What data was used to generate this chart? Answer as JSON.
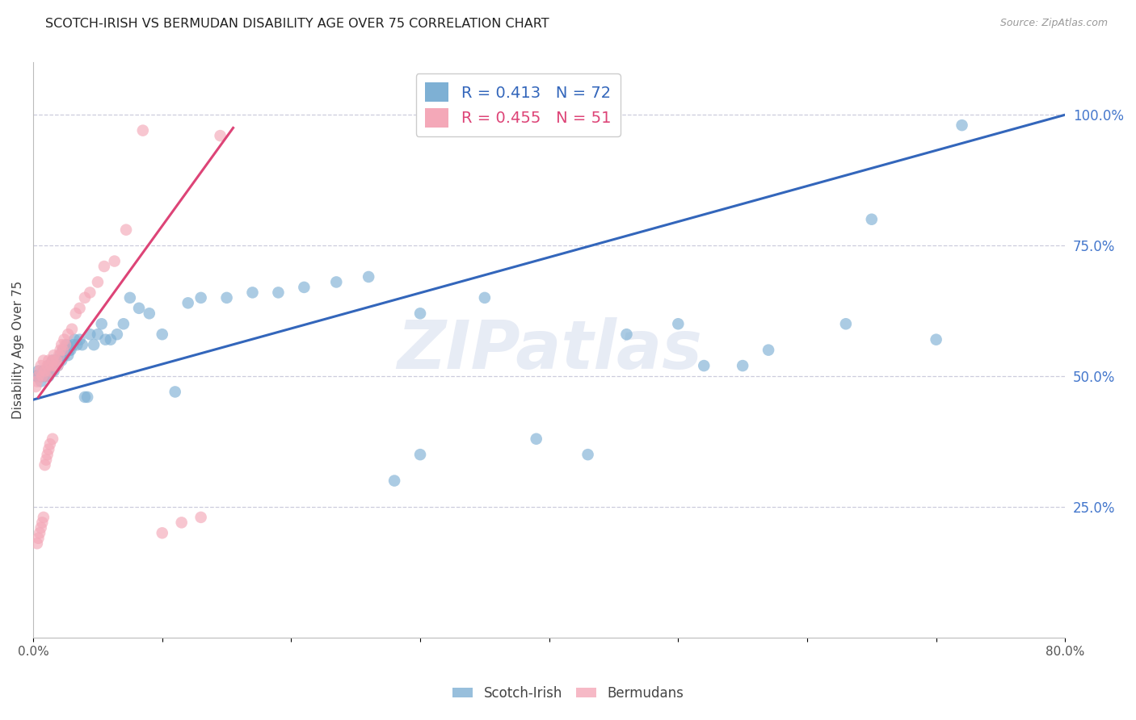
{
  "title": "SCOTCH-IRISH VS BERMUDAN DISABILITY AGE OVER 75 CORRELATION CHART",
  "source": "Source: ZipAtlas.com",
  "ylabel": "Disability Age Over 75",
  "watermark": "ZIPatlas",
  "blue_R": 0.413,
  "blue_N": 72,
  "pink_R": 0.455,
  "pink_N": 51,
  "blue_color": "#7EB0D4",
  "pink_color": "#F4A8B8",
  "blue_line_color": "#3366BB",
  "pink_line_color": "#DD4477",
  "right_tick_color": "#4477CC",
  "grid_color": "#CCCCDD",
  "background_color": "#FFFFFF",
  "x_min": 0.0,
  "x_max": 0.8,
  "y_min": 0.0,
  "y_max": 1.1,
  "blue_trend_x0": 0.0,
  "blue_trend_y0": 0.455,
  "blue_trend_x1": 0.8,
  "blue_trend_y1": 1.0,
  "pink_trend_x0": 0.004,
  "pink_trend_y0": 0.46,
  "pink_trend_x1": 0.155,
  "pink_trend_y1": 0.975,
  "scotch_irish_x": [
    0.002,
    0.003,
    0.004,
    0.005,
    0.006,
    0.007,
    0.008,
    0.009,
    0.01,
    0.011,
    0.012,
    0.012,
    0.013,
    0.014,
    0.015,
    0.016,
    0.017,
    0.018,
    0.019,
    0.02,
    0.021,
    0.022,
    0.023,
    0.024,
    0.025,
    0.026,
    0.027,
    0.028,
    0.029,
    0.031,
    0.032,
    0.034,
    0.036,
    0.038,
    0.04,
    0.042,
    0.044,
    0.047,
    0.05,
    0.053,
    0.056,
    0.06,
    0.065,
    0.07,
    0.075,
    0.082,
    0.09,
    0.1,
    0.11,
    0.12,
    0.13,
    0.15,
    0.17,
    0.19,
    0.21,
    0.235,
    0.26,
    0.3,
    0.35,
    0.39,
    0.46,
    0.5,
    0.52,
    0.57,
    0.63,
    0.65,
    0.7,
    0.72,
    0.43,
    0.55,
    0.3,
    0.28
  ],
  "scotch_irish_y": [
    0.5,
    0.5,
    0.51,
    0.5,
    0.49,
    0.5,
    0.51,
    0.5,
    0.5,
    0.51,
    0.52,
    0.5,
    0.51,
    0.52,
    0.53,
    0.51,
    0.52,
    0.53,
    0.52,
    0.53,
    0.54,
    0.53,
    0.55,
    0.54,
    0.55,
    0.56,
    0.54,
    0.55,
    0.55,
    0.56,
    0.57,
    0.56,
    0.57,
    0.56,
    0.46,
    0.46,
    0.58,
    0.56,
    0.58,
    0.6,
    0.57,
    0.57,
    0.58,
    0.6,
    0.65,
    0.63,
    0.62,
    0.58,
    0.47,
    0.64,
    0.65,
    0.65,
    0.66,
    0.66,
    0.67,
    0.68,
    0.69,
    0.62,
    0.65,
    0.38,
    0.58,
    0.6,
    0.52,
    0.55,
    0.6,
    0.8,
    0.57,
    0.98,
    0.35,
    0.52,
    0.35,
    0.3
  ],
  "bermuda_x": [
    0.002,
    0.003,
    0.004,
    0.005,
    0.006,
    0.007,
    0.008,
    0.009,
    0.01,
    0.011,
    0.012,
    0.013,
    0.014,
    0.015,
    0.016,
    0.017,
    0.018,
    0.019,
    0.02,
    0.021,
    0.022,
    0.023,
    0.024,
    0.025,
    0.027,
    0.03,
    0.033,
    0.036,
    0.04,
    0.044,
    0.05,
    0.055,
    0.063,
    0.072,
    0.085,
    0.1,
    0.115,
    0.13,
    0.145,
    0.015,
    0.013,
    0.012,
    0.011,
    0.01,
    0.009,
    0.008,
    0.007,
    0.006,
    0.005,
    0.004,
    0.003
  ],
  "bermuda_y": [
    0.48,
    0.49,
    0.5,
    0.51,
    0.52,
    0.5,
    0.53,
    0.51,
    0.5,
    0.52,
    0.53,
    0.51,
    0.52,
    0.53,
    0.54,
    0.52,
    0.53,
    0.52,
    0.54,
    0.55,
    0.56,
    0.55,
    0.57,
    0.56,
    0.58,
    0.59,
    0.62,
    0.63,
    0.65,
    0.66,
    0.68,
    0.71,
    0.72,
    0.78,
    0.97,
    0.2,
    0.22,
    0.23,
    0.96,
    0.38,
    0.37,
    0.36,
    0.35,
    0.34,
    0.33,
    0.23,
    0.22,
    0.21,
    0.2,
    0.19,
    0.18
  ]
}
